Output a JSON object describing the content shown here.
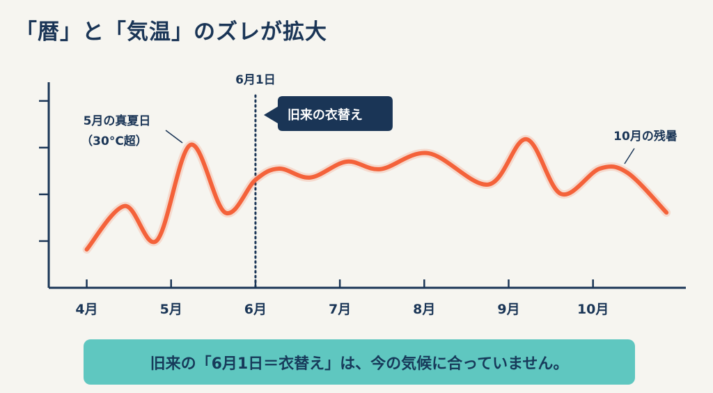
{
  "title": "「暦」と「気温」のズレが拡大",
  "note": "旧来の「6月1日＝衣替え」は、今の気候に合っていません。",
  "colors": {
    "background": "#f6f5f0",
    "navy": "#1a3556",
    "line": "#f4623a",
    "note_box": "#5fc7c0"
  },
  "chart_data": {
    "type": "line",
    "title": "",
    "xlabel": "",
    "ylabel": "",
    "x_tick_labels": [
      "4月",
      "5月",
      "6月",
      "7月",
      "8月",
      "9月",
      "10月"
    ],
    "x_ticks": [
      4,
      5,
      6,
      7,
      8,
      9,
      10
    ],
    "y_ticks": [
      1,
      2,
      3,
      4
    ],
    "xlim": [
      3.55,
      11.1
    ],
    "ylim": [
      0,
      4.4
    ],
    "grid": false,
    "series": [
      {
        "x": [
          4.0,
          4.45,
          4.83,
          5.23,
          5.64,
          6.0,
          6.28,
          6.65,
          7.08,
          7.48,
          8.05,
          8.76,
          9.21,
          9.62,
          10.08,
          10.41,
          10.87
        ],
        "y": [
          0.82,
          1.75,
          1.01,
          3.06,
          1.61,
          2.31,
          2.55,
          2.36,
          2.7,
          2.54,
          2.88,
          2.21,
          3.18,
          2.01,
          2.55,
          2.46,
          1.61
        ]
      }
    ],
    "vline": {
      "x": 6.0,
      "label": "6月1日",
      "style": "dotted"
    },
    "callout": {
      "text": "旧来の衣替え",
      "x": 6.0
    },
    "annotations": [
      {
        "text_line1": "5月の真夏日",
        "text_line2": "（30°C超）",
        "x": 5.23,
        "y": 3.06
      },
      {
        "text": "10月の残暑",
        "x": 10.41,
        "y": 2.46
      }
    ]
  }
}
